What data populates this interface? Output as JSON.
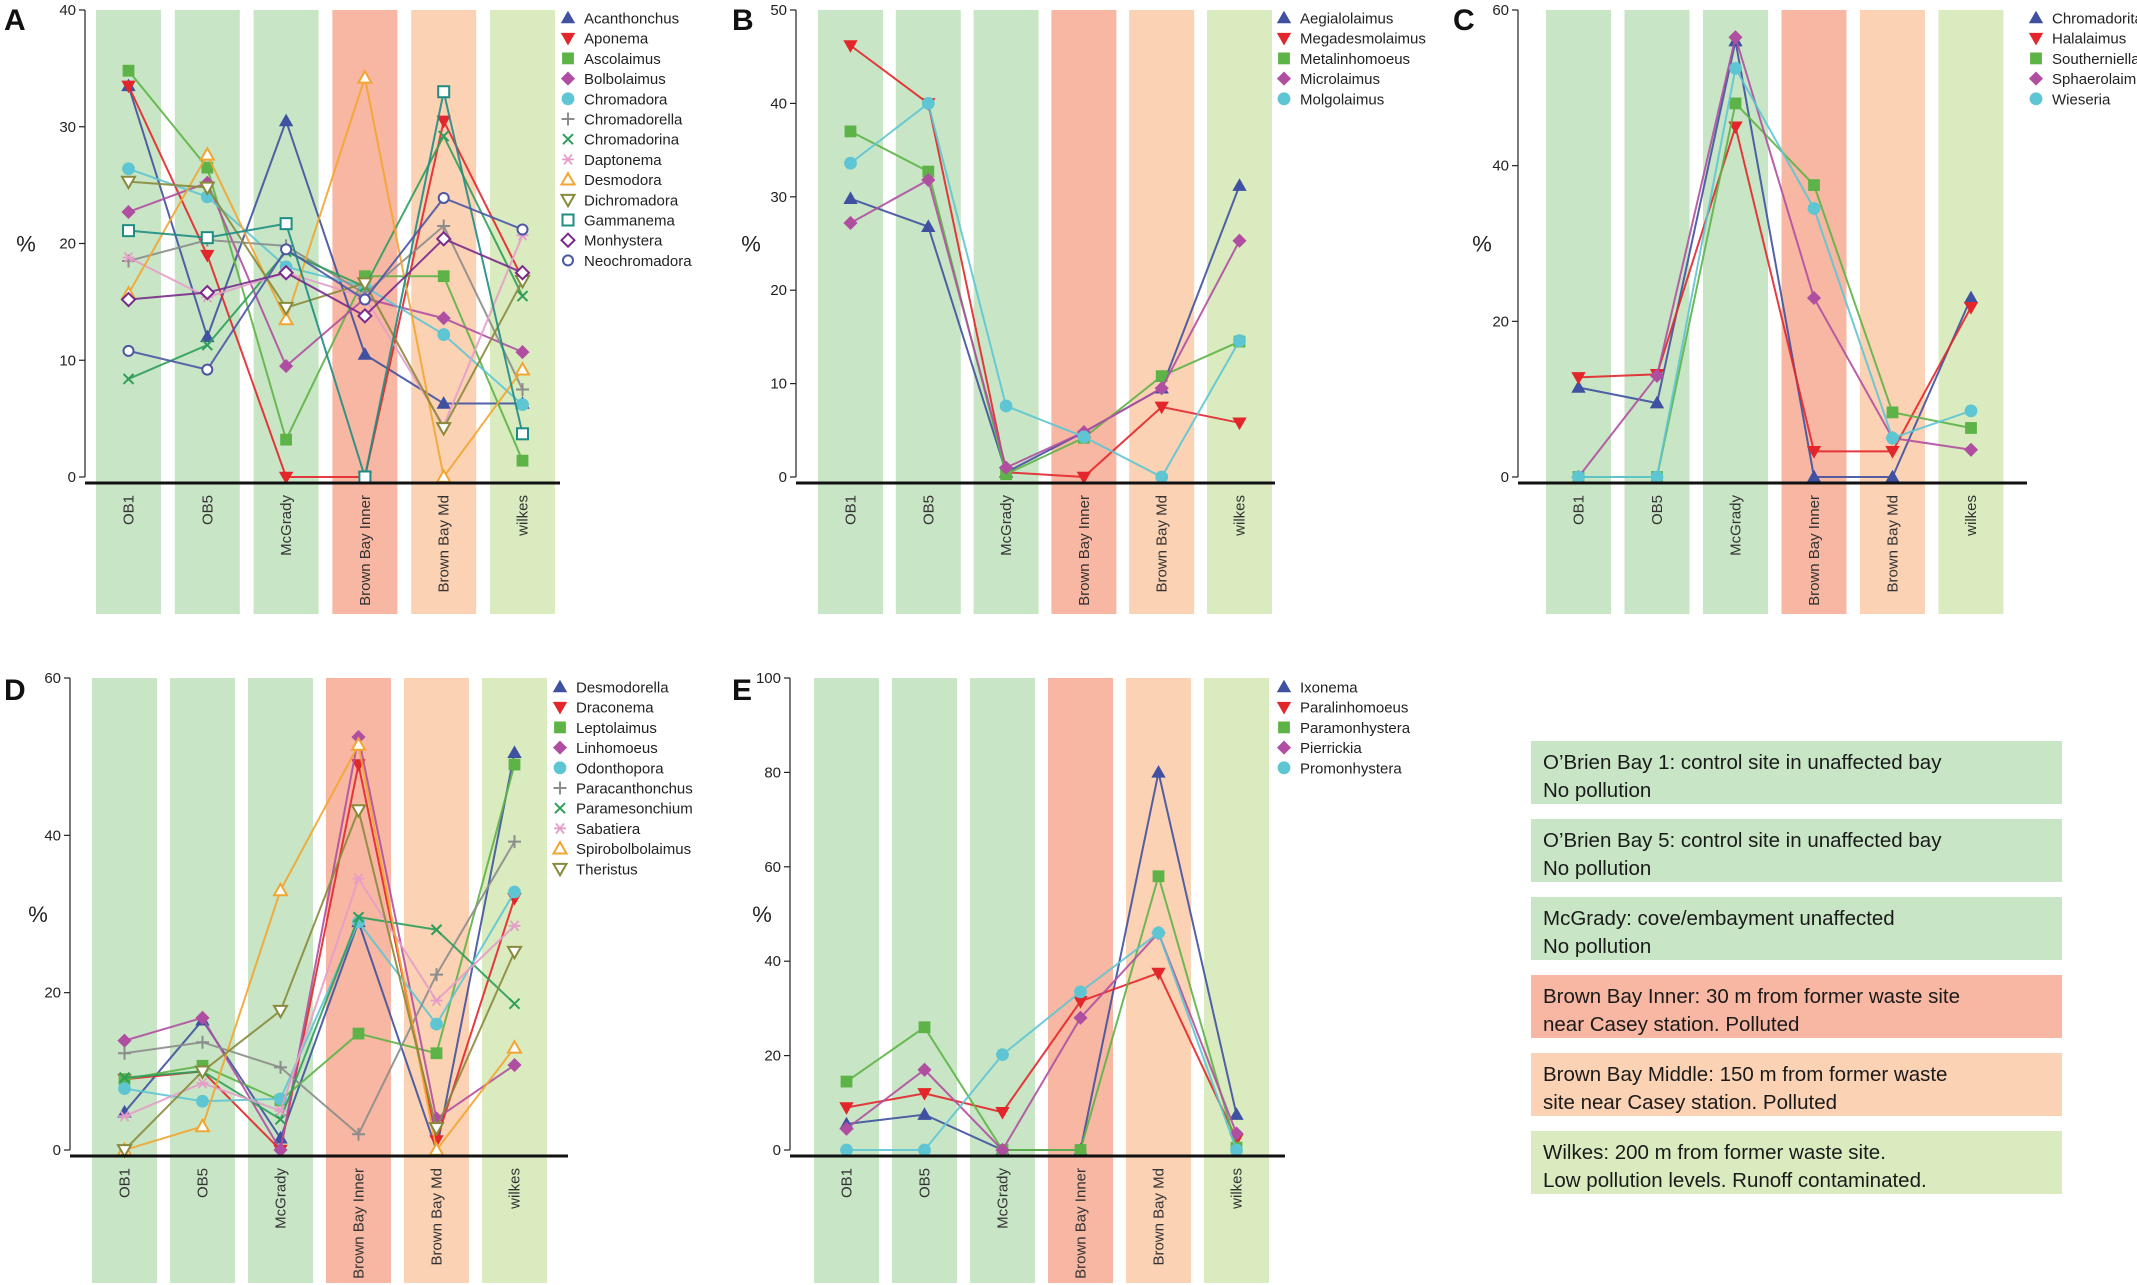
{
  "sites": [
    "OB1",
    "OB5",
    "McGrady",
    "Brown Bay Inner",
    "Brown Bay Md",
    "wilkes"
  ],
  "site_colors": [
    "#c8e6c5",
    "#c8e6c5",
    "#c8e6c5",
    "#f7b7a2",
    "#fcd2b4",
    "#d9ebbf"
  ],
  "y_label": "%",
  "chart_data": [
    {
      "type": "line",
      "panel": "A",
      "ylim": [
        0,
        40
      ],
      "yticks": [
        0,
        10,
        20,
        30,
        40
      ],
      "categories": [
        "OB1",
        "OB5",
        "McGrady",
        "Brown Bay Inner",
        "Brown Bay Md",
        "wilkes"
      ],
      "series": [
        {
          "name": "Acanthonchus",
          "marker": "triangle-up",
          "color": "#3f51a0",
          "values": [
            33.5,
            12,
            30.5,
            10.5,
            6.3,
            6.3
          ]
        },
        {
          "name": "Aponema",
          "marker": "triangle-down",
          "color": "#e3262b",
          "values": [
            33.5,
            19,
            0,
            0,
            30.5,
            17
          ]
        },
        {
          "name": "Ascolaimus",
          "marker": "square",
          "color": "#5db347",
          "values": [
            34.8,
            26.5,
            3.2,
            17.2,
            17.2,
            1.4
          ]
        },
        {
          "name": "Bolbolaimus",
          "marker": "diamond",
          "color": "#b04fa1",
          "values": [
            22.7,
            25.2,
            9.5,
            15.3,
            13.6,
            10.7
          ]
        },
        {
          "name": "Chromadora",
          "marker": "circle",
          "color": "#5ec5d3",
          "values": [
            26.4,
            24,
            18,
            16.3,
            12.2,
            6.2
          ]
        },
        {
          "name": "Chromadorella",
          "marker": "plus",
          "color": "#8c8c8c",
          "values": [
            18.5,
            20.3,
            19.8,
            15.7,
            21.5,
            7.5
          ]
        },
        {
          "name": "Chromadorina",
          "marker": "cross",
          "color": "#2f9e5b",
          "values": [
            8.4,
            11.3,
            19.3,
            16.3,
            29.2,
            15.5
          ]
        },
        {
          "name": "Daptonema",
          "marker": "asterisk",
          "color": "#e69dc8",
          "values": [
            18.8,
            15.4,
            17.5,
            15.4,
            4.4,
            20.7
          ]
        },
        {
          "name": "Desmodora",
          "marker": "triangle-up-open",
          "color": "#f2a531",
          "values": [
            15.7,
            27.6,
            13.5,
            34.2,
            0,
            9.2
          ]
        },
        {
          "name": "Dichromadora",
          "marker": "triangle-down-open",
          "color": "#8a8a3c",
          "values": [
            25.3,
            24.8,
            14.5,
            16.6,
            4.2,
            16.8
          ]
        },
        {
          "name": "Gammanema",
          "marker": "square-open",
          "color": "#1f8c84",
          "values": [
            21.1,
            20.5,
            21.7,
            0,
            33,
            3.7
          ]
        },
        {
          "name": "Monhystera",
          "marker": "diamond-open",
          "color": "#7a2a8c",
          "values": [
            15.2,
            15.8,
            17.5,
            13.8,
            20.4,
            17.5
          ]
        },
        {
          "name": "Neochromadora",
          "marker": "circle-open",
          "color": "#4b57a5",
          "values": [
            10.8,
            9.2,
            19.5,
            15.2,
            23.9,
            21.2
          ]
        }
      ]
    },
    {
      "type": "line",
      "panel": "B",
      "ylim": [
        0,
        50
      ],
      "yticks": [
        0,
        10,
        20,
        30,
        40,
        50
      ],
      "categories": [
        "OB1",
        "OB5",
        "McGrady",
        "Brown Bay Inner",
        "Brown Bay Md",
        "wilkes"
      ],
      "series": [
        {
          "name": "Aegialolaimus",
          "marker": "triangle-up",
          "color": "#3f51a0",
          "values": [
            29.8,
            26.8,
            0.5,
            4.8,
            9.5,
            31.2
          ]
        },
        {
          "name": "Megadesmolaimus",
          "marker": "triangle-down",
          "color": "#e3262b",
          "values": [
            46.2,
            40,
            0.5,
            0,
            7.5,
            5.8
          ]
        },
        {
          "name": "Metalinhomoeus",
          "marker": "square",
          "color": "#5db347",
          "values": [
            37,
            32.7,
            0.3,
            4.2,
            10.8,
            14.5
          ]
        },
        {
          "name": "Microlaimus",
          "marker": "diamond",
          "color": "#b04fa1",
          "values": [
            27.2,
            31.8,
            1,
            4.8,
            9.5,
            25.3
          ]
        },
        {
          "name": "Molgolaimus",
          "marker": "circle",
          "color": "#5ec5d3",
          "values": [
            33.6,
            40,
            7.6,
            4.3,
            0,
            14.6
          ]
        }
      ]
    },
    {
      "type": "line",
      "panel": "C",
      "ylim": [
        0,
        60
      ],
      "yticks": [
        0,
        20,
        40,
        60
      ],
      "categories": [
        "OB1",
        "OB5",
        "McGrady",
        "Brown Bay Inner",
        "Brown Bay Md",
        "wilkes"
      ],
      "series": [
        {
          "name": "Chromadorita",
          "marker": "triangle-up",
          "color": "#3f51a0",
          "values": [
            11.5,
            9.5,
            56,
            0,
            0,
            23
          ]
        },
        {
          "name": "Halalaimus",
          "marker": "triangle-down",
          "color": "#e3262b",
          "values": [
            12.8,
            13.2,
            45,
            3.3,
            3.3,
            21.8
          ]
        },
        {
          "name": "Southerniella",
          "marker": "square",
          "color": "#5db347",
          "values": [
            0,
            0,
            48,
            37.5,
            8.3,
            6.3
          ]
        },
        {
          "name": "Sphaerolaimus",
          "marker": "diamond",
          "color": "#b04fa1",
          "values": [
            0,
            13,
            56.5,
            23,
            5,
            3.5
          ]
        },
        {
          "name": "Wieseria",
          "marker": "circle",
          "color": "#5ec5d3",
          "values": [
            0,
            0,
            52.5,
            34.5,
            5,
            8.5
          ]
        }
      ]
    },
    {
      "type": "line",
      "panel": "D",
      "ylim": [
        0,
        60
      ],
      "yticks": [
        0,
        20,
        40,
        60
      ],
      "categories": [
        "OB1",
        "OB5",
        "McGrady",
        "Brown Bay Inner",
        "Brown Bay Md",
        "wilkes"
      ],
      "series": [
        {
          "name": "Desmodorella",
          "marker": "triangle-up",
          "color": "#3f51a0",
          "values": [
            4.8,
            16.5,
            1.5,
            29,
            0,
            50.5
          ]
        },
        {
          "name": "Draconema",
          "marker": "triangle-down",
          "color": "#e3262b",
          "values": [
            9,
            10,
            0,
            49,
            1.2,
            32
          ]
        },
        {
          "name": "Leptolaimus",
          "marker": "square",
          "color": "#5db347",
          "values": [
            9,
            10.7,
            6.3,
            14.8,
            12.3,
            49
          ]
        },
        {
          "name": "Linhomoeus",
          "marker": "diamond",
          "color": "#b04fa1",
          "values": [
            13.9,
            16.8,
            0,
            52.5,
            4,
            10.8
          ]
        },
        {
          "name": "Odonthopora",
          "marker": "circle",
          "color": "#5ec5d3",
          "values": [
            7.8,
            6.2,
            6.5,
            29,
            16,
            32.8
          ]
        },
        {
          "name": "Paracanthonchus",
          "marker": "plus",
          "color": "#8c8c8c",
          "values": [
            12.3,
            13.7,
            10.5,
            2,
            22.3,
            39.2
          ]
        },
        {
          "name": "Paramesonchium",
          "marker": "cross",
          "color": "#2f9e5b",
          "values": [
            9.2,
            10,
            3.9,
            29.6,
            28,
            18.6
          ]
        },
        {
          "name": "Sabatiera",
          "marker": "asterisk",
          "color": "#e69dc8",
          "values": [
            4.3,
            8.5,
            5,
            34.5,
            19,
            28.5
          ]
        },
        {
          "name": "Spirobolbolaimus",
          "marker": "triangle-up-open",
          "color": "#f2a531",
          "values": [
            0,
            3,
            33,
            51.5,
            0,
            13
          ]
        },
        {
          "name": "Theristus",
          "marker": "triangle-down-open",
          "color": "#8a8a3c",
          "values": [
            0,
            10,
            17.7,
            43.2,
            2.8,
            25.2
          ]
        }
      ]
    },
    {
      "type": "line",
      "panel": "E",
      "ylim": [
        0,
        100
      ],
      "yticks": [
        0,
        20,
        40,
        60,
        80,
        100
      ],
      "categories": [
        "OB1",
        "OB5",
        "McGrady",
        "Brown Bay Inner",
        "Brown Bay Md",
        "wilkes"
      ],
      "series": [
        {
          "name": "Ixonema",
          "marker": "triangle-up",
          "color": "#3f51a0",
          "values": [
            5.5,
            7.5,
            0,
            0,
            80,
            7.5
          ]
        },
        {
          "name": "Paralinhomoeus",
          "marker": "triangle-down",
          "color": "#e3262b",
          "values": [
            9,
            12,
            8,
            31.5,
            37.5,
            2.3
          ]
        },
        {
          "name": "Paramonhystera",
          "marker": "square",
          "color": "#5db347",
          "values": [
            14.5,
            26,
            0,
            0,
            58,
            0.5
          ]
        },
        {
          "name": "Pierrickia",
          "marker": "diamond",
          "color": "#b04fa1",
          "values": [
            4.5,
            17,
            0,
            28,
            46,
            3.5
          ]
        },
        {
          "name": "Promonhystera",
          "marker": "circle",
          "color": "#5ec5d3",
          "values": [
            0,
            0,
            20.2,
            33.5,
            46,
            0
          ]
        }
      ]
    }
  ],
  "site_legend": [
    {
      "line1": "O’Brien Bay 1: control site in unaffected bay",
      "line2": "No pollution",
      "color": "#c8e6c5"
    },
    {
      "line1": "O’Brien Bay 5: control site in unaffected bay",
      "line2": "No pollution",
      "color": "#c8e6c5"
    },
    {
      "line1": "McGrady: cove/embayment unaffected",
      "line2": "No pollution",
      "color": "#c8e6c5"
    },
    {
      "line1": "Brown Bay Inner: 30 m from former waste site",
      "line2": "near Casey station. Polluted",
      "color": "#f7b7a2"
    },
    {
      "line1": "Brown Bay Middle: 150 m from former waste",
      "line2": "site near Casey station. Polluted",
      "color": "#fcd2b4"
    },
    {
      "line1": "Wilkes:  200 m from former waste site.",
      "line2": "Low pollution levels. Runoff contaminated.",
      "color": "#d9ebbf"
    }
  ]
}
